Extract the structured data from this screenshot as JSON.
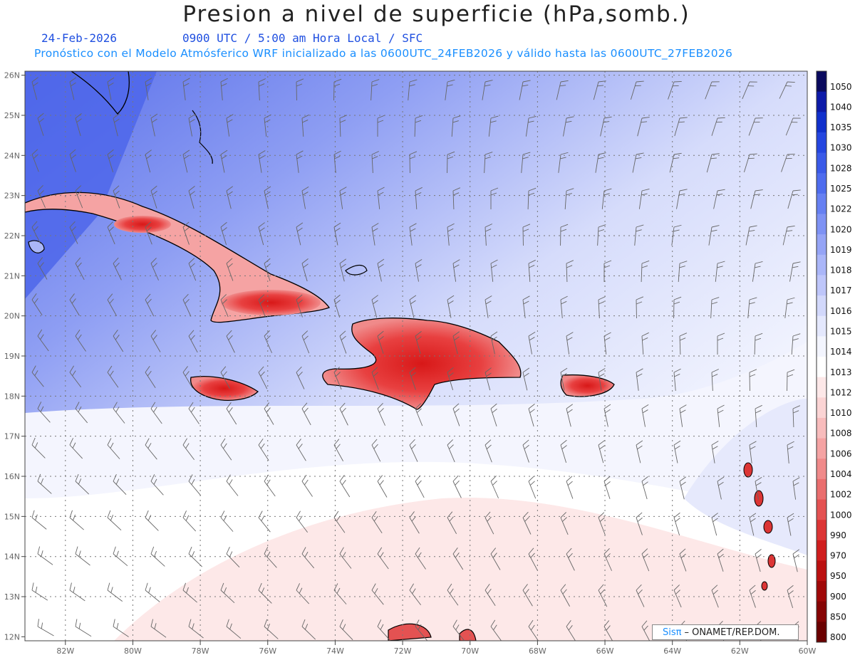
{
  "title": "Presion a nivel de superficie (hPa,somb.)",
  "date": "24-Feb-2026",
  "time_info": "0900 UTC / 5:00 am Hora Local / SFC",
  "model_info": "Pronóstico con el Modelo Atmósferico WRF inicializado a las 0600UTC_24FEB2026 y válido hasta las  0600UTC_27FEB2026",
  "lat_labels": [
    "26N",
    "25N",
    "24N",
    "23N",
    "22N",
    "21N",
    "20N",
    "19N",
    "18N",
    "17N",
    "16N",
    "15N",
    "14N",
    "13N",
    "12N"
  ],
  "lon_labels": [
    "82W",
    "80W",
    "78W",
    "76W",
    "74W",
    "72W",
    "70W",
    "68W",
    "66W",
    "64W",
    "62W",
    "60W"
  ],
  "colorbar": {
    "labels": [
      "1050",
      "1040",
      "1035",
      "1030",
      "1028",
      "1025",
      "1022",
      "1020",
      "1019",
      "1018",
      "1017",
      "1016",
      "1015",
      "1014",
      "1013",
      "1012",
      "1010",
      "1008",
      "1006",
      "1004",
      "1002",
      "1000",
      "990",
      "970",
      "950",
      "900",
      "850",
      "800"
    ],
    "colors": [
      "#0a0a5e",
      "#0d1aa8",
      "#1030cc",
      "#2446e0",
      "#3a5ae8",
      "#4e6cee",
      "#6680f2",
      "#7e92f4",
      "#95a4f6",
      "#aab6f8",
      "#bec6fa",
      "#d2d8fb",
      "#e4e8fd",
      "#f3f5fe",
      "#ffffff",
      "#fde8e8",
      "#fbd4d4",
      "#f8bcbc",
      "#f5a3a3",
      "#f08a8a",
      "#ea6e6e",
      "#e45252",
      "#dc3535",
      "#d01e1e",
      "#bb1010",
      "#a00808",
      "#860404",
      "#6a0000"
    ]
  },
  "credit": {
    "sis": "Sisπ",
    "text": "– ONAMET/REP.DOM."
  },
  "colors": {
    "title": "#222222",
    "date": "#1f4fe0",
    "model_info": "#1a8fff"
  }
}
